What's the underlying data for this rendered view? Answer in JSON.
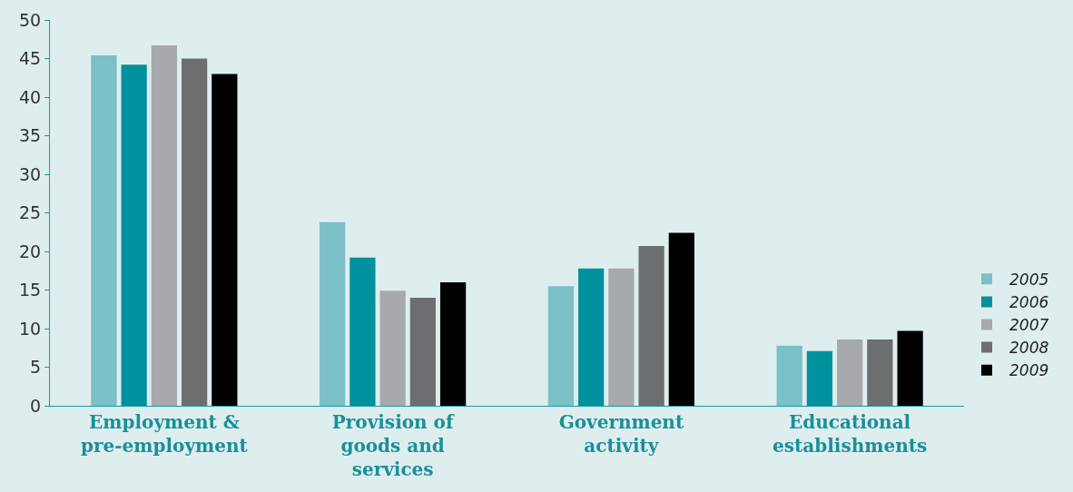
{
  "chart_data": {
    "type": "bar",
    "categories": [
      "Employment &\npre-employment",
      "Provision of\ngoods and\nservices",
      "Government\nactivity",
      "Educational\nestablishments"
    ],
    "series": [
      {
        "name": "2005",
        "color": "#7bbfc7",
        "values": [
          45.4,
          23.8,
          15.5,
          7.8
        ]
      },
      {
        "name": "2006",
        "color": "#00919e",
        "values": [
          44.2,
          19.2,
          17.8,
          7.1
        ]
      },
      {
        "name": "2007",
        "color": "#a7a9ac",
        "values": [
          46.7,
          14.9,
          17.8,
          8.6
        ]
      },
      {
        "name": "2008",
        "color": "#6d6e70",
        "values": [
          45.0,
          14.0,
          20.7,
          8.6
        ]
      },
      {
        "name": "2009",
        "color": "#000000",
        "values": [
          43.0,
          16.0,
          22.4,
          9.7
        ]
      }
    ],
    "ylim": [
      0,
      50
    ],
    "yticks": [
      0,
      5,
      10,
      15,
      20,
      25,
      30,
      35,
      40,
      45,
      50
    ],
    "grid": false,
    "legend": "right"
  }
}
